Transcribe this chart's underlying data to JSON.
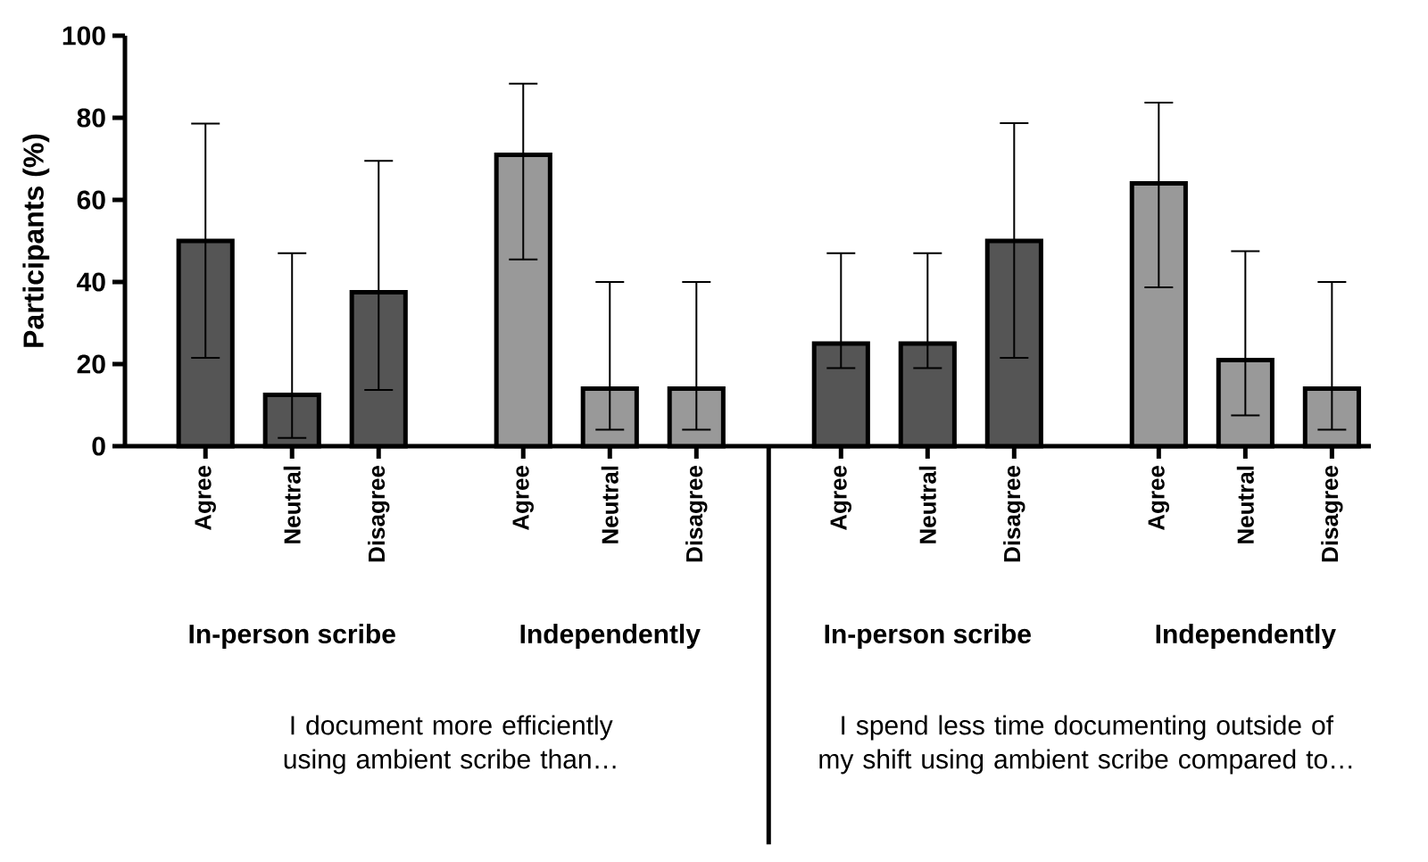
{
  "chart_data": {
    "type": "bar",
    "ylabel": "Participants (%)",
    "categories": [
      "Agree",
      "Neutral",
      "Disagree",
      "Agree",
      "Neutral",
      "Disagree",
      "Agree",
      "Neutral",
      "Disagree",
      "Agree",
      "Neutral",
      "Disagree"
    ],
    "values": [
      50,
      12.5,
      37.5,
      71,
      14,
      14,
      25,
      25,
      50,
      64,
      21,
      14
    ],
    "colors": [
      "#555555",
      "#555555",
      "#555555",
      "#999999",
      "#999999",
      "#999999",
      "#555555",
      "#555555",
      "#555555",
      "#999999",
      "#999999",
      "#999999"
    ],
    "errors": [
      [
        21.5,
        78.6
      ],
      [
        2,
        47
      ],
      [
        13.7,
        69.5
      ],
      [
        45.5,
        88.3
      ],
      [
        4,
        40
      ],
      [
        4,
        40
      ],
      [
        19,
        47
      ],
      [
        19,
        47
      ],
      [
        21.5,
        78.7
      ],
      [
        38.7,
        83.7
      ],
      [
        7.5,
        47.5
      ],
      [
        4,
        40
      ]
    ],
    "ylim": [
      0,
      100
    ],
    "yticks": [
      0,
      20,
      40,
      60,
      80,
      100
    ],
    "annotations": [
      "In-person scribe",
      "Independently",
      "In-person scribe",
      "Independently",
      "I document more efficiently using ambient scribe than…",
      "I spend less time documenting outside of my shift using ambient scribe compared to…"
    ]
  }
}
